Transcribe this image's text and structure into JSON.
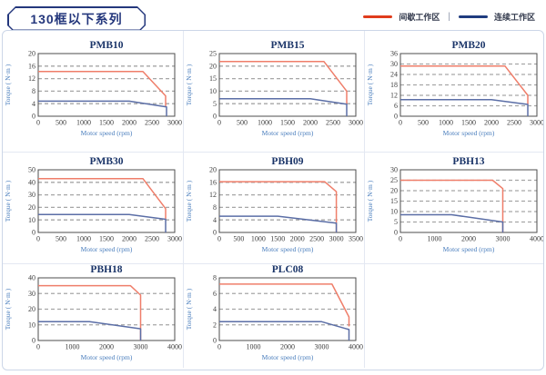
{
  "header": {
    "title": "130框以下系列"
  },
  "legend": {
    "intermittent_label": "间歇工作区",
    "separator": "|",
    "continuous_label": "连续工作区"
  },
  "colors": {
    "intermittent_legend": "#e03c1c",
    "continuous_legend": "#1f3c7f",
    "intermittent_line": "#ef7e6a",
    "continuous_line": "#5b6ea6",
    "grid": "#a6a6a6",
    "plot_border": "#4d4d4d",
    "title": "#1a3468",
    "axis_label": "#4a7ebd"
  },
  "chart_data": [
    {
      "type": "line",
      "title": "PMB10",
      "xlabel": "Motor speed (rpm)",
      "ylabel": "Torque ( N·m )",
      "xlim": [
        0,
        3000
      ],
      "ylim": [
        0,
        20
      ],
      "xtick_step": 500,
      "ytick_step": 4,
      "grid": "dashed-horizontal",
      "series": [
        {
          "name": "间歇工作区",
          "role": "intermittent",
          "points": [
            [
              0,
              14.3
            ],
            [
              2300,
              14.3
            ],
            [
              2800,
              6.5
            ],
            [
              2800,
              3
            ]
          ]
        },
        {
          "name": "连续工作区",
          "role": "continuous",
          "points": [
            [
              0,
              4.8
            ],
            [
              2000,
              4.8
            ],
            [
              2820,
              3
            ],
            [
              2820,
              0
            ]
          ]
        }
      ]
    },
    {
      "type": "line",
      "title": "PMB15",
      "xlabel": "Motor speed (rpm)",
      "ylabel": "Torque ( N·m )",
      "xlim": [
        0,
        3000
      ],
      "ylim": [
        0,
        25
      ],
      "xtick_step": 500,
      "ytick_step": 5,
      "grid": "dashed-horizontal",
      "series": [
        {
          "name": "间歇工作区",
          "role": "intermittent",
          "points": [
            [
              0,
              21.8
            ],
            [
              2300,
              21.8
            ],
            [
              2800,
              10
            ],
            [
              2800,
              4.8
            ]
          ]
        },
        {
          "name": "连续工作区",
          "role": "continuous",
          "points": [
            [
              0,
              7
            ],
            [
              2000,
              7
            ],
            [
              2800,
              4.8
            ],
            [
              2800,
              0
            ]
          ]
        }
      ]
    },
    {
      "type": "line",
      "title": "PMB20",
      "xlabel": "Motor speed (rpm)",
      "ylabel": "Torque ( N·m )",
      "xlim": [
        0,
        3000
      ],
      "ylim": [
        0,
        36
      ],
      "xtick_step": 500,
      "ytick_step": 6,
      "grid": "dashed-horizontal",
      "series": [
        {
          "name": "间歇工作区",
          "role": "intermittent",
          "points": [
            [
              0,
              28.8
            ],
            [
              2300,
              28.8
            ],
            [
              2800,
              12
            ],
            [
              2800,
              6.8
            ]
          ]
        },
        {
          "name": "连续工作区",
          "role": "continuous",
          "points": [
            [
              0,
              9.5
            ],
            [
              2000,
              9.5
            ],
            [
              2800,
              6.8
            ],
            [
              2800,
              0
            ]
          ]
        }
      ]
    },
    {
      "type": "line",
      "title": "PMB30",
      "xlabel": "Motor speed (rpm)",
      "ylabel": "Torque ( N·m )",
      "xlim": [
        0,
        3000
      ],
      "ylim": [
        0,
        50
      ],
      "xtick_step": 500,
      "ytick_step": 10,
      "grid": "dashed-horizontal",
      "series": [
        {
          "name": "间歇工作区",
          "role": "intermittent",
          "points": [
            [
              0,
              43
            ],
            [
              2300,
              43
            ],
            [
              2800,
              19
            ],
            [
              2800,
              10.5
            ]
          ]
        },
        {
          "name": "连续工作区",
          "role": "continuous",
          "points": [
            [
              0,
              14.3
            ],
            [
              2000,
              14.3
            ],
            [
              2800,
              10.5
            ],
            [
              2800,
              0
            ]
          ]
        }
      ]
    },
    {
      "type": "line",
      "title": "PBH09",
      "xlabel": "Motor speed (rpm)",
      "ylabel": "Torque ( N·m )",
      "xlim": [
        0,
        3500
      ],
      "ylim": [
        0,
        20
      ],
      "xtick_step": 500,
      "ytick_step": 4,
      "grid": "dashed-horizontal",
      "series": [
        {
          "name": "间歇工作区",
          "role": "intermittent",
          "points": [
            [
              0,
              16.2
            ],
            [
              2700,
              16.2
            ],
            [
              3000,
              13
            ],
            [
              3000,
              0
            ]
          ]
        },
        {
          "name": "连续工作区",
          "role": "continuous",
          "points": [
            [
              0,
              5.2
            ],
            [
              1500,
              5.2
            ],
            [
              3000,
              3
            ],
            [
              3000,
              0
            ]
          ]
        }
      ]
    },
    {
      "type": "line",
      "title": "PBH13",
      "xlabel": "Motor speed (rpm)",
      "ylabel": "Torque ( N·m )",
      "xlim": [
        0,
        4000
      ],
      "ylim": [
        0,
        30
      ],
      "xtick_step": 1000,
      "ytick_step": 5,
      "grid": "dashed-horizontal",
      "series": [
        {
          "name": "间歇工作区",
          "role": "intermittent",
          "points": [
            [
              0,
              25
            ],
            [
              2700,
              25
            ],
            [
              3000,
              21
            ],
            [
              3000,
              0
            ]
          ]
        },
        {
          "name": "连续工作区",
          "role": "continuous",
          "points": [
            [
              0,
              8.5
            ],
            [
              1500,
              8.5
            ],
            [
              3000,
              5
            ],
            [
              3000,
              0
            ]
          ]
        }
      ]
    },
    {
      "type": "line",
      "title": "PBH18",
      "xlabel": "Motor speed (rpm)",
      "ylabel": "Torque ( N·m )",
      "xlim": [
        0,
        4000
      ],
      "ylim": [
        0,
        40
      ],
      "xtick_step": 1000,
      "ytick_step": 10,
      "grid": "dashed-horizontal",
      "series": [
        {
          "name": "间歇工作区",
          "role": "intermittent",
          "points": [
            [
              0,
              35
            ],
            [
              2700,
              35
            ],
            [
              3000,
              29
            ],
            [
              3000,
              0
            ]
          ]
        },
        {
          "name": "连续工作区",
          "role": "continuous",
          "points": [
            [
              0,
              12
            ],
            [
              1500,
              12
            ],
            [
              3000,
              7.5
            ],
            [
              3000,
              0
            ]
          ]
        }
      ]
    },
    {
      "type": "line",
      "title": "PLC08",
      "xlabel": "Motor speed (rpm)",
      "ylabel": "Torque ( N·m )",
      "xlim": [
        0,
        4000
      ],
      "ylim": [
        0,
        8
      ],
      "xtick_step": 1000,
      "ytick_step": 2,
      "grid": "dashed-horizontal",
      "series": [
        {
          "name": "间歇工作区",
          "role": "intermittent",
          "points": [
            [
              0,
              7.2
            ],
            [
              3300,
              7.2
            ],
            [
              3800,
              3
            ],
            [
              3800,
              1.8
            ]
          ]
        },
        {
          "name": "连续工作区",
          "role": "continuous",
          "points": [
            [
              0,
              2.4
            ],
            [
              3000,
              2.4
            ],
            [
              3800,
              1.4
            ],
            [
              3800,
              0
            ]
          ]
        }
      ]
    }
  ]
}
